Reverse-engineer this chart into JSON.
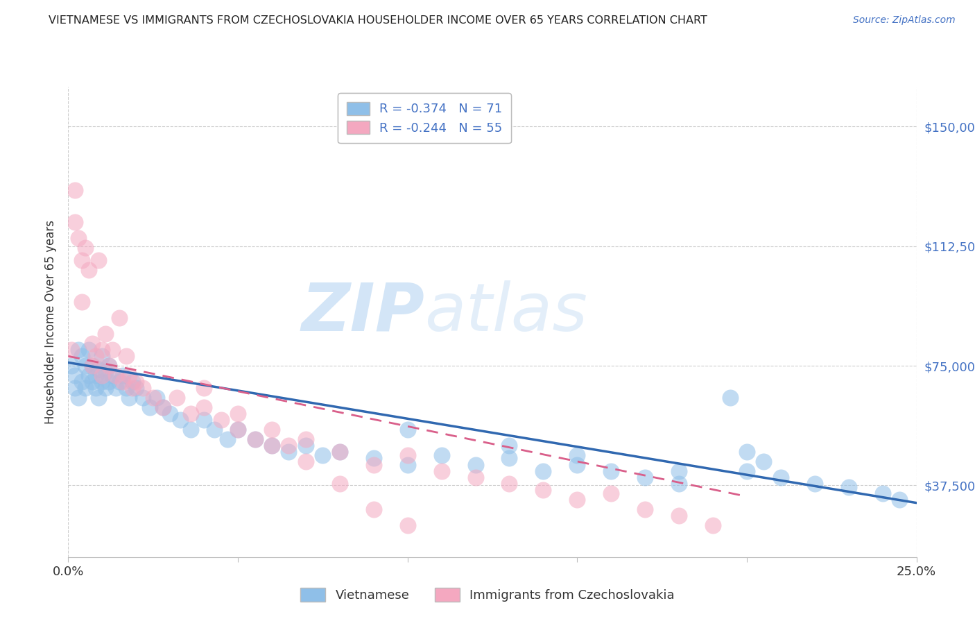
{
  "title": "VIETNAMESE VS IMMIGRANTS FROM CZECHOSLOVAKIA HOUSEHOLDER INCOME OVER 65 YEARS CORRELATION CHART",
  "source": "Source: ZipAtlas.com",
  "ylabel": "Householder Income Over 65 years",
  "xlim": [
    0.0,
    0.25
  ],
  "ylim": [
    15000,
    162500
  ],
  "yticks": [
    37500,
    75000,
    112500,
    150000
  ],
  "ytick_labels": [
    "$37,500",
    "$75,000",
    "$112,500",
    "$150,000"
  ],
  "xticks": [
    0.0,
    0.05,
    0.1,
    0.15,
    0.2,
    0.25
  ],
  "xtick_labels": [
    "0.0%",
    "",
    "",
    "",
    "",
    "25.0%"
  ],
  "watermark_zip": "ZIP",
  "watermark_atlas": "atlas",
  "legend_r1": "R = -0.374",
  "legend_n1": "N = 71",
  "legend_r2": "R = -0.244",
  "legend_n2": "N = 55",
  "series1_name": "Vietnamese",
  "series2_name": "Immigrants from Czechoslovakia",
  "series1_color": "#8fbfe8",
  "series2_color": "#f4a8c0",
  "series1_line_color": "#3068b0",
  "series2_line_color": "#d95f8a",
  "title_color": "#222222",
  "axis_label_color": "#333333",
  "ytick_color": "#4472c4",
  "background_color": "#ffffff",
  "grid_color": "#cccccc",
  "series1_x": [
    0.001,
    0.002,
    0.002,
    0.003,
    0.003,
    0.004,
    0.004,
    0.005,
    0.005,
    0.006,
    0.006,
    0.007,
    0.007,
    0.008,
    0.008,
    0.009,
    0.009,
    0.01,
    0.01,
    0.011,
    0.011,
    0.012,
    0.012,
    0.013,
    0.014,
    0.015,
    0.016,
    0.017,
    0.018,
    0.019,
    0.02,
    0.022,
    0.024,
    0.026,
    0.028,
    0.03,
    0.033,
    0.036,
    0.04,
    0.043,
    0.047,
    0.05,
    0.055,
    0.06,
    0.065,
    0.07,
    0.075,
    0.08,
    0.09,
    0.1,
    0.11,
    0.12,
    0.13,
    0.14,
    0.15,
    0.16,
    0.17,
    0.18,
    0.2,
    0.21,
    0.22,
    0.23,
    0.24,
    0.245,
    0.1,
    0.13,
    0.15,
    0.18,
    0.195,
    0.2,
    0.205
  ],
  "series1_y": [
    75000,
    72000,
    68000,
    80000,
    65000,
    78000,
    70000,
    75000,
    68000,
    80000,
    72000,
    75000,
    70000,
    72000,
    68000,
    74000,
    65000,
    78000,
    70000,
    73000,
    68000,
    75000,
    70000,
    72000,
    68000,
    70000,
    72000,
    68000,
    65000,
    70000,
    68000,
    65000,
    62000,
    65000,
    62000,
    60000,
    58000,
    55000,
    58000,
    55000,
    52000,
    55000,
    52000,
    50000,
    48000,
    50000,
    47000,
    48000,
    46000,
    44000,
    47000,
    44000,
    46000,
    42000,
    44000,
    42000,
    40000,
    38000,
    42000,
    40000,
    38000,
    37000,
    35000,
    33000,
    55000,
    50000,
    47000,
    42000,
    65000,
    48000,
    45000
  ],
  "series2_x": [
    0.001,
    0.002,
    0.002,
    0.003,
    0.004,
    0.004,
    0.005,
    0.006,
    0.007,
    0.007,
    0.008,
    0.009,
    0.01,
    0.01,
    0.011,
    0.012,
    0.013,
    0.014,
    0.015,
    0.016,
    0.017,
    0.018,
    0.019,
    0.02,
    0.022,
    0.025,
    0.028,
    0.032,
    0.036,
    0.04,
    0.045,
    0.05,
    0.055,
    0.06,
    0.065,
    0.07,
    0.08,
    0.09,
    0.1,
    0.11,
    0.12,
    0.13,
    0.14,
    0.15,
    0.16,
    0.17,
    0.18,
    0.19,
    0.04,
    0.05,
    0.06,
    0.07,
    0.08,
    0.09,
    0.1
  ],
  "series2_y": [
    80000,
    130000,
    120000,
    115000,
    108000,
    95000,
    112000,
    105000,
    75000,
    82000,
    78000,
    108000,
    80000,
    72000,
    85000,
    75000,
    80000,
    72000,
    90000,
    70000,
    78000,
    72000,
    68000,
    70000,
    68000,
    65000,
    62000,
    65000,
    60000,
    62000,
    58000,
    55000,
    52000,
    55000,
    50000,
    52000,
    48000,
    44000,
    47000,
    42000,
    40000,
    38000,
    36000,
    33000,
    35000,
    30000,
    28000,
    25000,
    68000,
    60000,
    50000,
    45000,
    38000,
    30000,
    25000
  ],
  "line1_x0": 0.0,
  "line1_y0": 76000,
  "line1_x1": 0.25,
  "line1_y1": 32000,
  "line2_x0": 0.0,
  "line2_y0": 78000,
  "line2_x1": 0.2,
  "line2_y1": 34000
}
